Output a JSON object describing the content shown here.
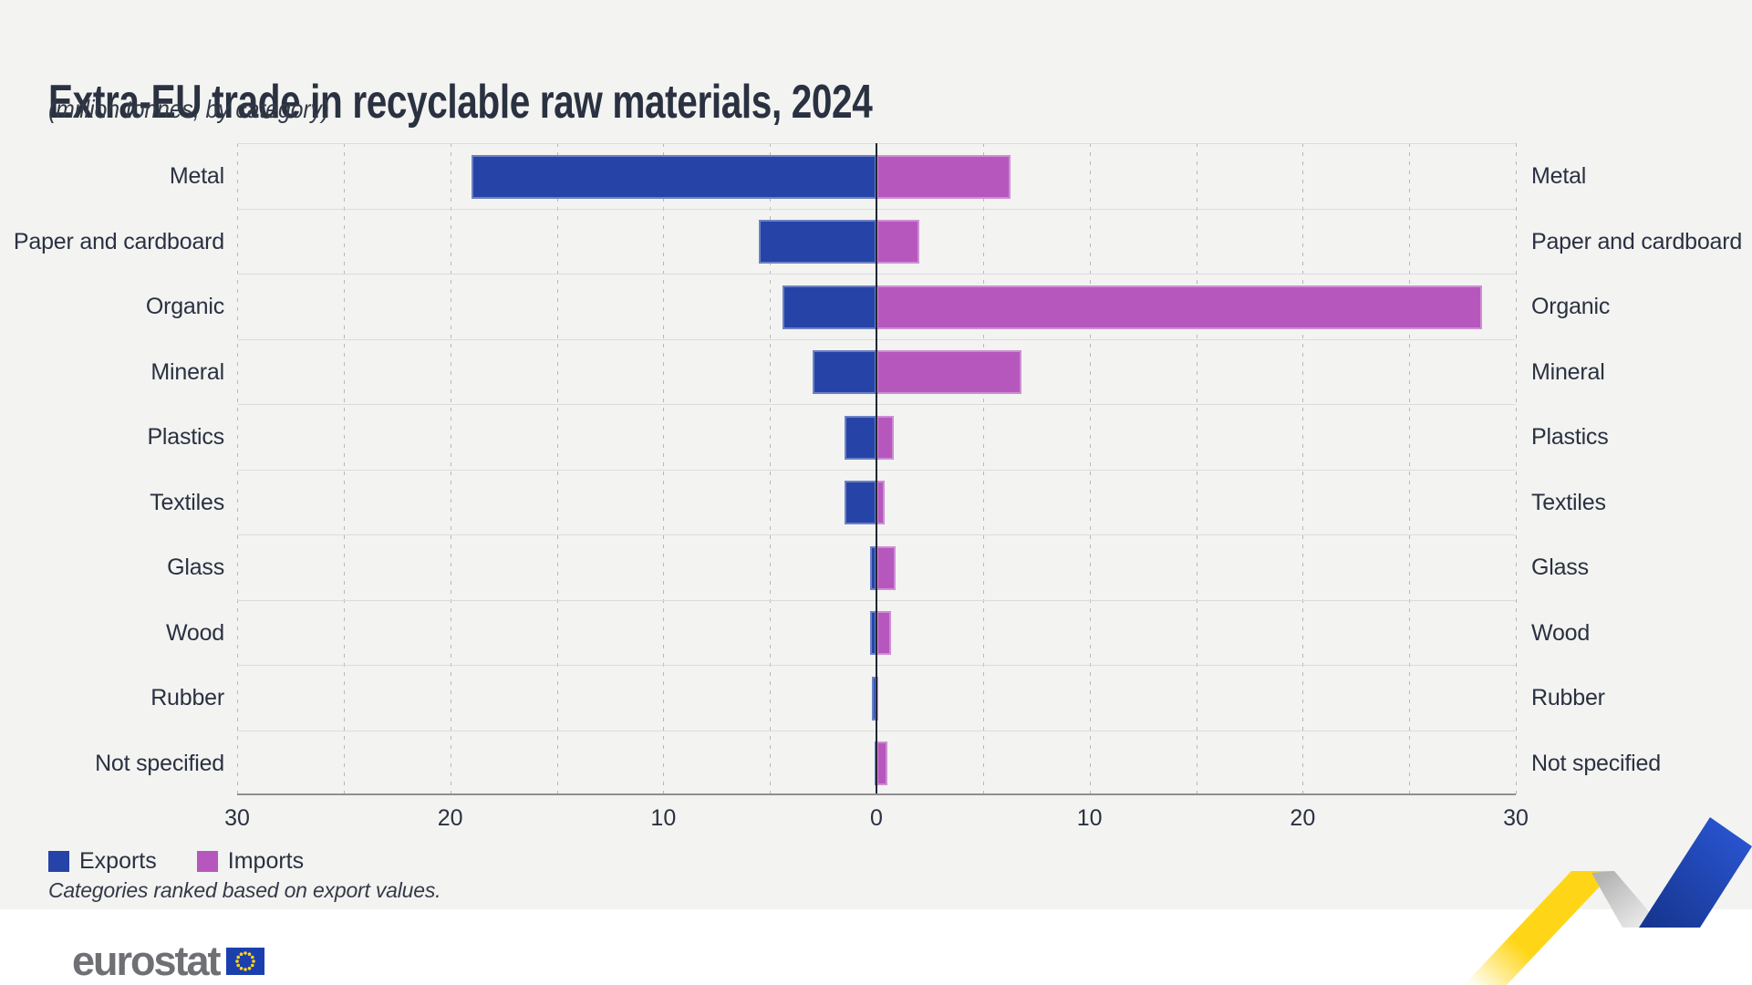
{
  "header": {
    "title": "Extra-EU trade in recyclable raw materials, 2024",
    "subtitle": "(million tonnes, by category)"
  },
  "chart_data": {
    "type": "bar",
    "orientation": "horizontal-diverging",
    "title": "Extra-EU trade in recyclable raw materials, 2024",
    "subtitle": "(million tonnes, by category)",
    "unit": "million tonnes",
    "categories": [
      "Metal",
      "Paper and cardboard",
      "Organic",
      "Mineral",
      "Plastics",
      "Textiles",
      "Glass",
      "Wood",
      "Rubber",
      "Not specified"
    ],
    "series": [
      {
        "name": "Exports",
        "color": "#2644A7",
        "direction": "left",
        "values": [
          19.0,
          5.5,
          4.4,
          3.0,
          1.5,
          1.5,
          0.3,
          0.3,
          0.2,
          0.1
        ]
      },
      {
        "name": "Imports",
        "color": "#B657BE",
        "direction": "right",
        "values": [
          6.3,
          2.0,
          28.4,
          6.8,
          0.8,
          0.4,
          0.9,
          0.7,
          0.1,
          0.5
        ]
      }
    ],
    "x_axis": {
      "range": [
        -30,
        30
      ],
      "gridline_step": 5,
      "ticks": [
        {
          "value": -30,
          "label": "30"
        },
        {
          "value": -20,
          "label": "20"
        },
        {
          "value": -10,
          "label": "10"
        },
        {
          "value": 0,
          "label": "0"
        },
        {
          "value": 10,
          "label": "10"
        },
        {
          "value": 20,
          "label": "20"
        },
        {
          "value": 30,
          "label": "30"
        }
      ]
    },
    "category_labels_shown": "both-sides",
    "grid": "dashed-vertical",
    "legend_position": "bottom-left"
  },
  "legend": {
    "items": [
      {
        "label": "Exports",
        "color": "#2644A7"
      },
      {
        "label": "Imports",
        "color": "#B657BE"
      }
    ]
  },
  "footnote": "Categories ranked based on export values.",
  "logo": {
    "text": "eurostat",
    "flag_icon": "eu-flag-icon"
  },
  "colors": {
    "background": "#f3f3f2",
    "text": "#2a3140",
    "exports_blue": "#2644A7",
    "imports_purple": "#B657BE",
    "ribbon_yellow": "#FFD617",
    "ribbon_blue": "#2450CE",
    "flag_blue": "#1c3fae",
    "star_yellow": "#FFD617"
  }
}
